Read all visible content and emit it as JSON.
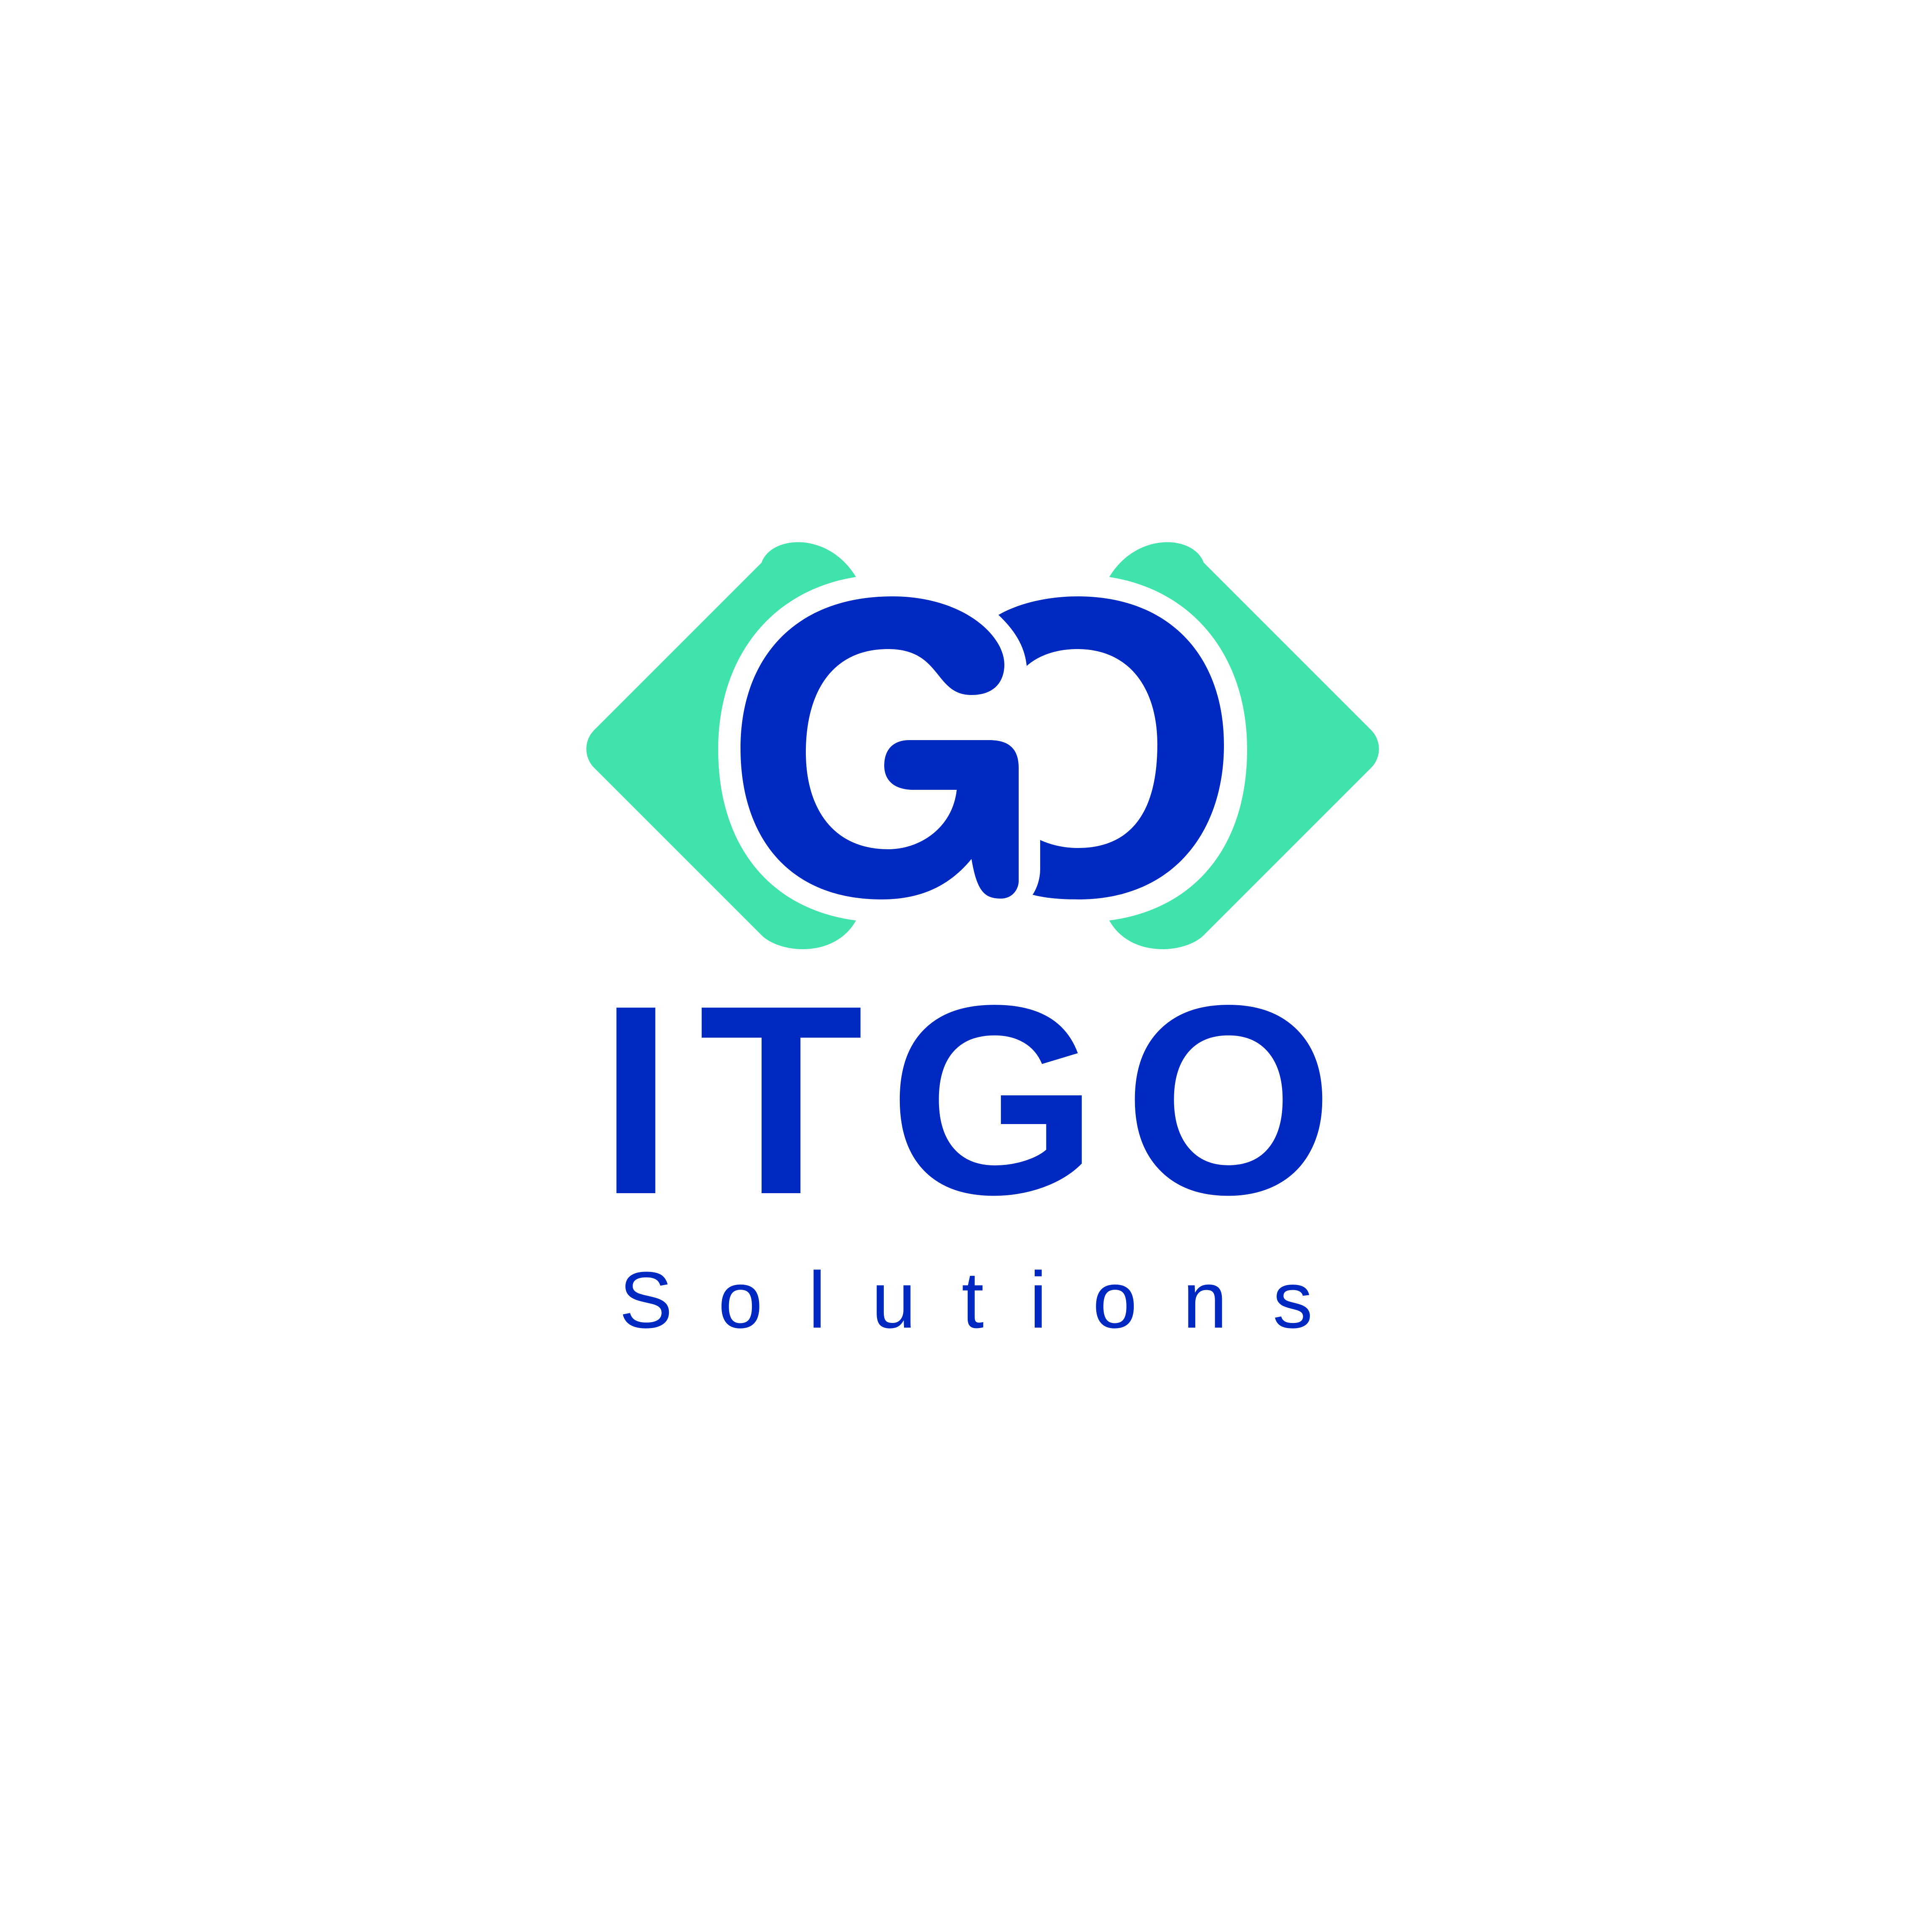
{
  "logo": {
    "monogram": "GO",
    "name": "ITGO",
    "tagline": "Solutions"
  },
  "colors": {
    "primary_blue": "#0029C2",
    "accent_green": "#40E3AA",
    "background": "#FFFFFF"
  }
}
